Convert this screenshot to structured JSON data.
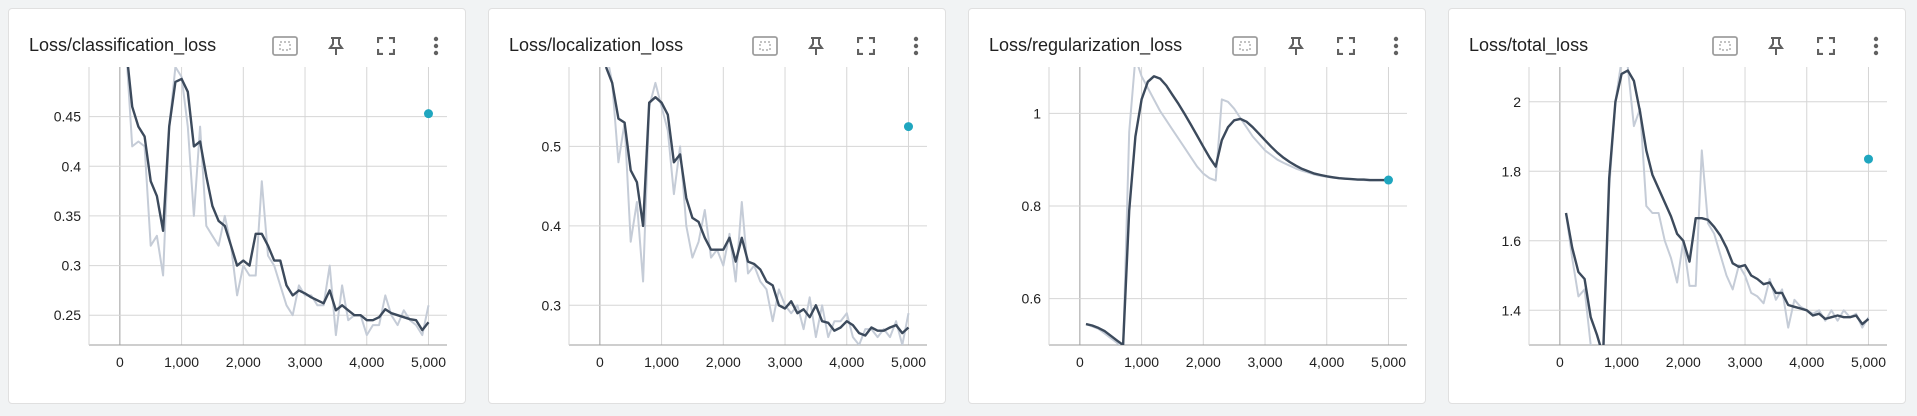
{
  "colors": {
    "smoothed_line": "#3c4a5c",
    "raw_line": "#c5ccd7",
    "marker": "#1fa6bf",
    "grid": "#d6d6d6",
    "axis": "#9e9e9e"
  },
  "toolbar_icons": [
    "fit-domain-icon",
    "pin-icon",
    "fullscreen-icon",
    "more-vert-icon"
  ],
  "chart_data": [
    {
      "type": "line",
      "title": "Loss/classification_loss",
      "xlabel": "",
      "ylabel": "",
      "xlim": [
        -500,
        5300
      ],
      "ylim": [
        0.22,
        0.5
      ],
      "xticks": [
        0,
        1000,
        2000,
        3000,
        4000,
        5000
      ],
      "xtick_labels": [
        "0",
        "1,000",
        "2,000",
        "3,000",
        "4,000",
        "5,000"
      ],
      "yticks": [
        0.25,
        0.3,
        0.35,
        0.4,
        0.45
      ],
      "ytick_labels": [
        "0.25",
        "0.3",
        "0.35",
        "0.4",
        "0.45"
      ],
      "grid": true,
      "series": [
        {
          "role": "raw",
          "x": [
            100,
            200,
            300,
            400,
            500,
            600,
            700,
            800,
            900,
            1000,
            1100,
            1200,
            1300,
            1400,
            1500,
            1600,
            1700,
            1800,
            1900,
            2000,
            2100,
            2200,
            2300,
            2400,
            2500,
            2600,
            2700,
            2800,
            2900,
            3000,
            3100,
            3200,
            3300,
            3400,
            3500,
            3600,
            3700,
            3800,
            3900,
            4000,
            4100,
            4200,
            4300,
            4400,
            4500,
            4600,
            4700,
            4800,
            4900,
            5000
          ],
          "y": [
            0.52,
            0.42,
            0.425,
            0.42,
            0.32,
            0.33,
            0.29,
            0.44,
            0.5,
            0.49,
            0.44,
            0.35,
            0.44,
            0.34,
            0.33,
            0.32,
            0.35,
            0.32,
            0.27,
            0.3,
            0.29,
            0.29,
            0.385,
            0.31,
            0.3,
            0.28,
            0.26,
            0.25,
            0.28,
            0.27,
            0.27,
            0.26,
            0.26,
            0.3,
            0.23,
            0.28,
            0.245,
            0.25,
            0.25,
            0.23,
            0.24,
            0.24,
            0.27,
            0.25,
            0.24,
            0.255,
            0.245,
            0.24,
            0.23,
            0.26
          ]
        },
        {
          "role": "smoothed",
          "x": [
            100,
            200,
            300,
            400,
            500,
            600,
            700,
            800,
            900,
            1000,
            1100,
            1200,
            1300,
            1400,
            1500,
            1600,
            1700,
            1800,
            1900,
            2000,
            2100,
            2200,
            2300,
            2400,
            2500,
            2600,
            2700,
            2800,
            2900,
            3000,
            3100,
            3200,
            3300,
            3400,
            3500,
            3600,
            3700,
            3800,
            3900,
            4000,
            4100,
            4200,
            4300,
            4400,
            4500,
            4600,
            4700,
            4800,
            4900,
            5000
          ],
          "y": [
            0.52,
            0.46,
            0.44,
            0.43,
            0.385,
            0.37,
            0.335,
            0.44,
            0.485,
            0.488,
            0.475,
            0.42,
            0.425,
            0.39,
            0.36,
            0.345,
            0.34,
            0.32,
            0.3,
            0.305,
            0.3,
            0.332,
            0.332,
            0.32,
            0.305,
            0.305,
            0.28,
            0.27,
            0.275,
            0.272,
            0.268,
            0.265,
            0.262,
            0.275,
            0.255,
            0.26,
            0.255,
            0.25,
            0.25,
            0.245,
            0.245,
            0.248,
            0.256,
            0.252,
            0.25,
            0.248,
            0.246,
            0.245,
            0.235,
            0.243
          ]
        }
      ],
      "marker": {
        "x": 5000,
        "y": 0.453
      }
    },
    {
      "type": "line",
      "title": "Loss/localization_loss",
      "xlabel": "",
      "ylabel": "",
      "xlim": [
        -500,
        5300
      ],
      "ylim": [
        0.25,
        0.6
      ],
      "xticks": [
        0,
        1000,
        2000,
        3000,
        4000,
        5000
      ],
      "xtick_labels": [
        "0",
        "1,000",
        "2,000",
        "3,000",
        "4,000",
        "5,000"
      ],
      "yticks": [
        0.3,
        0.4,
        0.5
      ],
      "ytick_labels": [
        "0.3",
        "0.4",
        "0.5"
      ],
      "grid": true,
      "series": [
        {
          "role": "raw",
          "x": [
            100,
            200,
            300,
            400,
            500,
            600,
            700,
            800,
            900,
            1000,
            1100,
            1200,
            1300,
            1400,
            1500,
            1600,
            1700,
            1800,
            1900,
            2000,
            2100,
            2200,
            2300,
            2400,
            2500,
            2600,
            2700,
            2800,
            2900,
            3000,
            3100,
            3200,
            3300,
            3400,
            3500,
            3600,
            3700,
            3800,
            3900,
            4000,
            4100,
            4200,
            4300,
            4400,
            4500,
            4600,
            4700,
            4800,
            4900,
            5000
          ],
          "y": [
            0.62,
            0.58,
            0.48,
            0.53,
            0.38,
            0.43,
            0.33,
            0.55,
            0.58,
            0.55,
            0.52,
            0.44,
            0.5,
            0.4,
            0.36,
            0.38,
            0.42,
            0.36,
            0.37,
            0.35,
            0.39,
            0.33,
            0.43,
            0.34,
            0.35,
            0.33,
            0.32,
            0.28,
            0.32,
            0.3,
            0.29,
            0.3,
            0.27,
            0.31,
            0.26,
            0.3,
            0.26,
            0.28,
            0.28,
            0.29,
            0.26,
            0.25,
            0.27,
            0.27,
            0.26,
            0.27,
            0.26,
            0.28,
            0.25,
            0.29
          ]
        },
        {
          "role": "smoothed",
          "x": [
            100,
            200,
            300,
            400,
            500,
            600,
            700,
            800,
            900,
            1000,
            1100,
            1200,
            1300,
            1400,
            1500,
            1600,
            1700,
            1800,
            1900,
            2000,
            2100,
            2200,
            2300,
            2400,
            2500,
            2600,
            2700,
            2800,
            2900,
            3000,
            3100,
            3200,
            3300,
            3400,
            3500,
            3600,
            3700,
            3800,
            3900,
            4000,
            4100,
            4200,
            4300,
            4400,
            4500,
            4600,
            4700,
            4800,
            4900,
            5000
          ],
          "y": [
            0.6,
            0.58,
            0.535,
            0.53,
            0.47,
            0.455,
            0.4,
            0.555,
            0.562,
            0.555,
            0.54,
            0.48,
            0.49,
            0.435,
            0.41,
            0.405,
            0.385,
            0.37,
            0.37,
            0.37,
            0.385,
            0.355,
            0.385,
            0.355,
            0.352,
            0.345,
            0.33,
            0.325,
            0.3,
            0.296,
            0.305,
            0.29,
            0.295,
            0.285,
            0.3,
            0.28,
            0.278,
            0.268,
            0.272,
            0.28,
            0.275,
            0.265,
            0.262,
            0.272,
            0.268,
            0.268,
            0.272,
            0.275,
            0.265,
            0.272
          ]
        }
      ],
      "marker": {
        "x": 5000,
        "y": 0.525
      }
    },
    {
      "type": "line",
      "title": "Loss/regularization_loss",
      "xlabel": "",
      "ylabel": "",
      "xlim": [
        -500,
        5300
      ],
      "ylim": [
        0.5,
        1.1
      ],
      "xticks": [
        0,
        1000,
        2000,
        3000,
        4000,
        5000
      ],
      "xtick_labels": [
        "0",
        "1,000",
        "2,000",
        "3,000",
        "4,000",
        "5,000"
      ],
      "yticks": [
        0.6,
        0.8,
        1.0
      ],
      "ytick_labels": [
        "0.6",
        "0.8",
        "1"
      ],
      "grid": true,
      "series": [
        {
          "role": "raw",
          "x": [
            100,
            200,
            300,
            400,
            500,
            600,
            700,
            800,
            900,
            1000,
            1100,
            1200,
            1300,
            1400,
            1500,
            1600,
            1700,
            1800,
            1900,
            2000,
            2100,
            2200,
            2300,
            2400,
            2500,
            2600,
            2700,
            2800,
            2900,
            3000,
            3100,
            3200,
            3300,
            3400,
            3500,
            3600,
            3700,
            3800,
            3900,
            4000,
            4100,
            4200,
            4300,
            4400,
            4500,
            4600,
            4700,
            4800,
            4900,
            5000
          ],
          "y": [
            0.545,
            0.54,
            0.535,
            0.525,
            0.515,
            0.505,
            0.49,
            0.96,
            1.12,
            1.08,
            1.055,
            1.03,
            1.005,
            0.985,
            0.965,
            0.945,
            0.925,
            0.905,
            0.885,
            0.87,
            0.86,
            0.855,
            1.03,
            1.025,
            1.01,
            0.99,
            0.97,
            0.95,
            0.935,
            0.92,
            0.91,
            0.9,
            0.893,
            0.887,
            0.881,
            0.876,
            0.872,
            0.868,
            0.865,
            0.863,
            0.861,
            0.86,
            0.859,
            0.858,
            0.857,
            0.856,
            0.855,
            0.855,
            0.855,
            0.855
          ]
        },
        {
          "role": "smoothed",
          "x": [
            100,
            200,
            300,
            400,
            500,
            600,
            700,
            800,
            900,
            1000,
            1100,
            1200,
            1300,
            1400,
            1500,
            1600,
            1700,
            1800,
            1900,
            2000,
            2100,
            2200,
            2300,
            2400,
            2500,
            2600,
            2700,
            2800,
            2900,
            3000,
            3100,
            3200,
            3300,
            3400,
            3500,
            3600,
            3700,
            3800,
            3900,
            4000,
            4100,
            4200,
            4300,
            4400,
            4500,
            4600,
            4700,
            4800,
            4900,
            5000
          ],
          "y": [
            0.545,
            0.542,
            0.537,
            0.53,
            0.52,
            0.51,
            0.5,
            0.79,
            0.95,
            1.03,
            1.068,
            1.08,
            1.075,
            1.06,
            1.04,
            1.02,
            0.998,
            0.975,
            0.952,
            0.928,
            0.905,
            0.885,
            0.942,
            0.97,
            0.985,
            0.988,
            0.982,
            0.97,
            0.956,
            0.942,
            0.928,
            0.915,
            0.904,
            0.895,
            0.887,
            0.88,
            0.875,
            0.87,
            0.867,
            0.864,
            0.862,
            0.86,
            0.859,
            0.858,
            0.857,
            0.857,
            0.856,
            0.856,
            0.856,
            0.856
          ]
        }
      ],
      "marker": {
        "x": 5000,
        "y": 0.856
      }
    },
    {
      "type": "line",
      "title": "Loss/total_loss",
      "xlabel": "",
      "ylabel": "",
      "xlim": [
        -500,
        5300
      ],
      "ylim": [
        1.3,
        2.1
      ],
      "xticks": [
        0,
        1000,
        2000,
        3000,
        4000,
        5000
      ],
      "xtick_labels": [
        "0",
        "1,000",
        "2,000",
        "3,000",
        "4,000",
        "5,000"
      ],
      "yticks": [
        1.4,
        1.6,
        1.8,
        2.0
      ],
      "ytick_labels": [
        "1.4",
        "1.6",
        "1.8",
        "2"
      ],
      "grid": true,
      "series": [
        {
          "role": "raw",
          "x": [
            100,
            200,
            300,
            400,
            500,
            600,
            700,
            800,
            900,
            1000,
            1100,
            1200,
            1300,
            1400,
            1500,
            1600,
            1700,
            1800,
            1900,
            2000,
            2100,
            2200,
            2300,
            2400,
            2500,
            2600,
            2700,
            2800,
            2900,
            3000,
            3100,
            3200,
            3300,
            3400,
            3500,
            3600,
            3700,
            3800,
            3900,
            4000,
            4100,
            4200,
            4300,
            4400,
            4500,
            4600,
            4700,
            4800,
            4900,
            5000
          ],
          "y": [
            1.68,
            1.55,
            1.44,
            1.46,
            1.3,
            1.28,
            1.25,
            1.75,
            2.0,
            2.12,
            2.1,
            1.93,
            1.98,
            1.7,
            1.68,
            1.68,
            1.6,
            1.55,
            1.48,
            1.6,
            1.47,
            1.47,
            1.86,
            1.65,
            1.62,
            1.56,
            1.5,
            1.46,
            1.53,
            1.5,
            1.45,
            1.44,
            1.42,
            1.49,
            1.43,
            1.46,
            1.35,
            1.43,
            1.41,
            1.4,
            1.39,
            1.4,
            1.37,
            1.4,
            1.37,
            1.4,
            1.38,
            1.39,
            1.35,
            1.38
          ]
        },
        {
          "role": "smoothed",
          "x": [
            100,
            200,
            300,
            400,
            500,
            600,
            700,
            800,
            900,
            1000,
            1100,
            1200,
            1300,
            1400,
            1500,
            1600,
            1700,
            1800,
            1900,
            2000,
            2100,
            2200,
            2300,
            2400,
            2500,
            2600,
            2700,
            2800,
            2900,
            3000,
            3100,
            3200,
            3300,
            3400,
            3500,
            3600,
            3700,
            3800,
            3900,
            4000,
            4100,
            4200,
            4300,
            4400,
            4500,
            4600,
            4700,
            4800,
            4900,
            5000
          ],
          "y": [
            1.68,
            1.58,
            1.51,
            1.49,
            1.38,
            1.33,
            1.27,
            1.78,
            2.0,
            2.08,
            2.09,
            2.06,
            1.97,
            1.86,
            1.79,
            1.75,
            1.71,
            1.67,
            1.62,
            1.6,
            1.54,
            1.665,
            1.665,
            1.66,
            1.64,
            1.615,
            1.58,
            1.535,
            1.525,
            1.53,
            1.5,
            1.49,
            1.475,
            1.48,
            1.45,
            1.45,
            1.415,
            1.41,
            1.405,
            1.4,
            1.385,
            1.39,
            1.375,
            1.38,
            1.385,
            1.38,
            1.38,
            1.385,
            1.36,
            1.375
          ]
        }
      ],
      "marker": {
        "x": 5000,
        "y": 1.835
      }
    }
  ]
}
